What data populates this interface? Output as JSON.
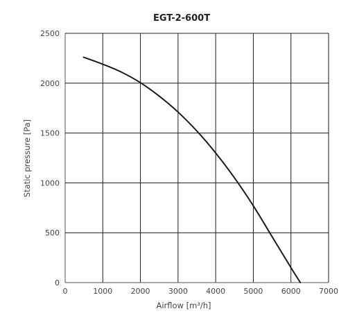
{
  "chart_data": {
    "type": "line",
    "title": "EGT-2-600T",
    "xlabel": "Airflow [m³/h]",
    "ylabel": "Static pressure [Pa]",
    "xlim": [
      0,
      7000
    ],
    "ylim": [
      0,
      2500
    ],
    "x_ticks": [
      0,
      1000,
      2000,
      3000,
      4000,
      5000,
      6000,
      7000
    ],
    "y_ticks": [
      0,
      500,
      1000,
      1500,
      2000,
      2500
    ],
    "grid": true,
    "series": [
      {
        "x": [
          490,
          1000,
          1500,
          2000,
          2500,
          3000,
          3500,
          4000,
          4500,
          5000,
          5500,
          6000,
          6250
        ],
        "y": [
          2260,
          2190,
          2110,
          2005,
          1870,
          1710,
          1520,
          1300,
          1050,
          770,
          460,
          150,
          0
        ]
      }
    ],
    "colors": {
      "line": "#1a1a1a",
      "grid": "#1a1a1a",
      "axis": "#555555"
    }
  }
}
